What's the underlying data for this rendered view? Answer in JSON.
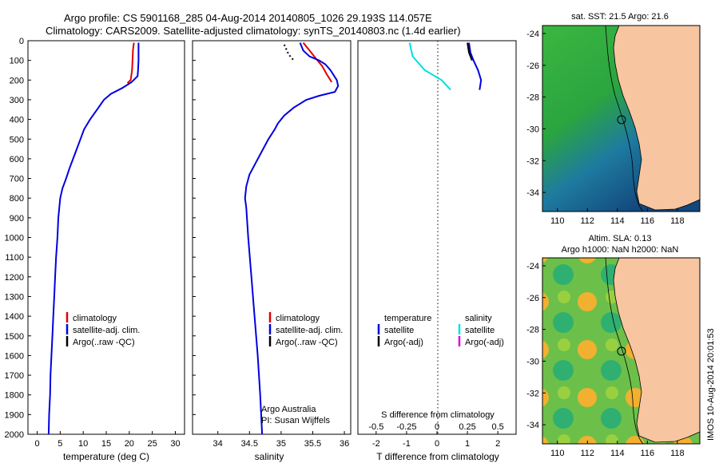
{
  "header": {
    "line1": "Argo profile: CS 5901168_285 04-Aug-2014 20140805_1026 29.193S 114.057E",
    "line2": "Climatology: CARS2009. Satellite-adjusted climatology: synTS_20140803.nc (1.4d earlier)"
  },
  "side_label": "IMOS 10-Aug-2014 20:01:53",
  "colors": {
    "climatology": "#e00000",
    "satellite": "#0000e0",
    "argo": "#000000",
    "cyan": "#00e0e0",
    "magenta": "#e000e0",
    "land": "#f7c59f",
    "ocean_deep": "#0a50d0",
    "ocean_warm": "#30b030"
  },
  "chart_data": [
    {
      "type": "line",
      "xlabel": "temperature (deg C)",
      "ylim": [
        2000,
        0
      ],
      "xlim": [
        -2,
        32
      ],
      "xticks": [
        "0",
        "5",
        "10",
        "15",
        "20",
        "25",
        "30"
      ],
      "yticks": [
        "0",
        "100",
        "200",
        "300",
        "400",
        "500",
        "600",
        "700",
        "800",
        "900",
        "1000",
        "1100",
        "1200",
        "1300",
        "1400",
        "1500",
        "1600",
        "1700",
        "1800",
        "1900",
        "2000"
      ],
      "legend": [
        "climatology",
        "satellite-adj. clim.",
        "Argo(..raw -QC)"
      ],
      "series": [
        {
          "name": "climatology",
          "color": "#e00000",
          "points": [
            [
              21.0,
              10
            ],
            [
              20.8,
              50
            ],
            [
              20.7,
              100
            ],
            [
              20.6,
              150
            ],
            [
              20.3,
              200
            ],
            [
              19.6,
              215
            ]
          ]
        },
        {
          "name": "satellite-adj. clim.",
          "color": "#0000e0",
          "points": [
            [
              22.0,
              10
            ],
            [
              22.0,
              100
            ],
            [
              21.9,
              150
            ],
            [
              21.8,
              180
            ],
            [
              20.5,
              210
            ],
            [
              18.5,
              240
            ],
            [
              16.0,
              270
            ],
            [
              14.5,
              300
            ],
            [
              13.0,
              350
            ],
            [
              11.5,
              400
            ],
            [
              10.2,
              450
            ],
            [
              9.4,
              500
            ],
            [
              8.6,
              550
            ],
            [
              7.8,
              600
            ],
            [
              7.0,
              650
            ],
            [
              6.3,
              700
            ],
            [
              5.5,
              750
            ],
            [
              5.0,
              800
            ],
            [
              4.8,
              850
            ],
            [
              4.6,
              900
            ],
            [
              4.4,
              1000
            ],
            [
              4.1,
              1100
            ],
            [
              3.9,
              1200
            ],
            [
              3.7,
              1300
            ],
            [
              3.5,
              1400
            ],
            [
              3.3,
              1500
            ],
            [
              3.1,
              1600
            ],
            [
              2.9,
              1700
            ],
            [
              2.8,
              1800
            ],
            [
              2.6,
              1900
            ],
            [
              2.5,
              2000
            ]
          ]
        },
        {
          "name": "Argo(..raw -QC)",
          "color": "#000000",
          "points": []
        }
      ]
    },
    {
      "type": "line",
      "xlabel": "salinity",
      "ylim": [
        2000,
        0
      ],
      "xlim": [
        33.6,
        36.1
      ],
      "xticks": [
        "34",
        "34.5",
        "35",
        "35.5",
        "36"
      ],
      "legend": [
        "climatology",
        "satellite-adj. clim.",
        "Argo(..raw -QC)"
      ],
      "annotation": [
        "Argo Australia",
        "PI: Susan Wijffels"
      ],
      "series": [
        {
          "name": "climatology",
          "color": "#e00000",
          "points": [
            [
              35.35,
              10
            ],
            [
              35.45,
              50
            ],
            [
              35.55,
              90
            ],
            [
              35.65,
              130
            ],
            [
              35.72,
              170
            ],
            [
              35.8,
              210
            ]
          ]
        },
        {
          "name": "satellite-adj. clim.",
          "color": "#0000e0",
          "points": [
            [
              35.3,
              10
            ],
            [
              35.35,
              50
            ],
            [
              35.45,
              80
            ],
            [
              35.6,
              100
            ],
            [
              35.7,
              120
            ],
            [
              35.78,
              150
            ],
            [
              35.88,
              200
            ],
            [
              35.9,
              230
            ],
            [
              35.85,
              260
            ],
            [
              35.6,
              280
            ],
            [
              35.4,
              300
            ],
            [
              35.2,
              340
            ],
            [
              35.05,
              380
            ],
            [
              34.95,
              420
            ],
            [
              34.9,
              450
            ],
            [
              34.8,
              500
            ],
            [
              34.7,
              560
            ],
            [
              34.6,
              620
            ],
            [
              34.5,
              680
            ],
            [
              34.45,
              740
            ],
            [
              34.43,
              800
            ],
            [
              34.45,
              850
            ],
            [
              34.48,
              1000
            ],
            [
              34.53,
              1200
            ],
            [
              34.58,
              1400
            ],
            [
              34.63,
              1600
            ],
            [
              34.67,
              1800
            ],
            [
              34.7,
              2000
            ]
          ]
        },
        {
          "name": "Argo(..raw -QC)",
          "color": "#000000",
          "dashed": true,
          "points": [
            [
              35.05,
              20
            ],
            [
              35.12,
              70
            ],
            [
              35.2,
              100
            ]
          ]
        }
      ]
    },
    {
      "type": "line",
      "xlabel": "T difference from climatology",
      "xlabel_top": "S difference from climatology",
      "ylim": [
        2000,
        0
      ],
      "xlim": [
        -2.6,
        2.6
      ],
      "xticks": [
        "-2",
        "-1",
        "0",
        "1",
        "2"
      ],
      "xticks_top": [
        "-0.5",
        "-0.25",
        "0",
        "0.25",
        "0.5"
      ],
      "legend_left_title": "temperature",
      "legend_right_title": "salinity",
      "legend_left": [
        "satellite",
        "Argo(-adj)"
      ],
      "legend_right": [
        "satellite",
        "Argo(-adj)"
      ],
      "series": [
        {
          "name": "temperature satellite",
          "color": "#0000e0",
          "points": [
            [
              1.05,
              10
            ],
            [
              1.1,
              60
            ],
            [
              1.2,
              100
            ],
            [
              1.35,
              150
            ],
            [
              1.45,
              200
            ],
            [
              1.4,
              250
            ]
          ]
        },
        {
          "name": "temperature Argo",
          "color": "#000000",
          "points": [
            [
              1.0,
              10
            ],
            [
              1.05,
              60
            ],
            [
              1.15,
              100
            ]
          ]
        },
        {
          "name": "salinity satellite",
          "color": "#00e0e0",
          "points": [
            [
              -0.9,
              10
            ],
            [
              -0.8,
              80
            ],
            [
              -0.4,
              150
            ],
            [
              0.15,
              200
            ],
            [
              0.45,
              250
            ]
          ]
        }
      ]
    }
  ],
  "map1": {
    "title": "sat. SST: 21.5 Argo: 21.6",
    "xticks": [
      "110",
      "112",
      "114",
      "116",
      "118"
    ],
    "yticks": [
      "-24",
      "-26",
      "-28",
      "-30",
      "-32",
      "-34"
    ]
  },
  "map2": {
    "title1": "Altim. SLA: 0.13",
    "title2": "Argo h1000: NaN h2000: NaN",
    "xticks": [
      "110",
      "112",
      "114",
      "116",
      "118"
    ],
    "yticks": [
      "-24",
      "-26",
      "-28",
      "-30",
      "-32",
      "-34"
    ]
  }
}
